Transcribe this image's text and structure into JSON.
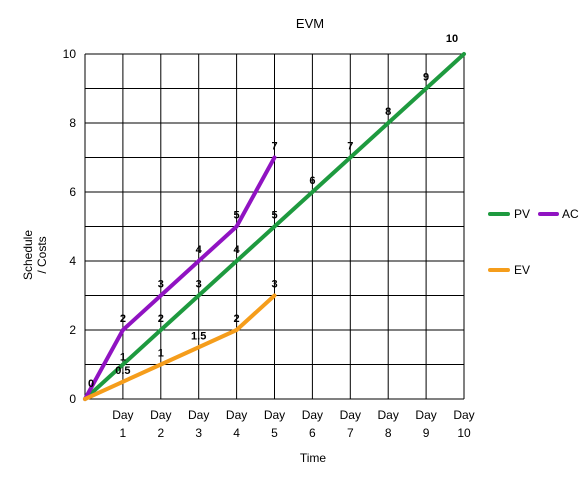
{
  "chart_data": {
    "type": "line",
    "title": "EVM",
    "xlabel": "Time",
    "ylabel": "Schedule / Costs",
    "ylabel_lines": [
      "Schedule",
      "/ Costs"
    ],
    "x": [
      0,
      1,
      2,
      3,
      4,
      5,
      6,
      7,
      8,
      9,
      10
    ],
    "x_tick_labels": [
      [
        "Day",
        "1"
      ],
      [
        "Day",
        "2"
      ],
      [
        "Day",
        "3"
      ],
      [
        "Day",
        "4"
      ],
      [
        "Day",
        "5"
      ],
      [
        "Day",
        "6"
      ],
      [
        "Day",
        "7"
      ],
      [
        "Day",
        "8"
      ],
      [
        "Day",
        "9"
      ],
      [
        "Day",
        "10"
      ]
    ],
    "y_ticks": [
      0,
      2,
      4,
      6,
      8,
      10
    ],
    "xlim": [
      0,
      10
    ],
    "ylim": [
      0,
      10
    ],
    "grid": true,
    "legend_position": "right",
    "series": [
      {
        "name": "PV",
        "color": "#1e9a3f",
        "x": [
          0,
          1,
          2,
          3,
          4,
          5,
          6,
          7,
          8,
          9,
          10
        ],
        "values": [
          0,
          1,
          2,
          3,
          4,
          5,
          6,
          7,
          8,
          9,
          10
        ],
        "labels": [
          "0",
          "1",
          "2",
          "3",
          "4",
          "5",
          "6",
          "7",
          "8",
          "9",
          "10"
        ]
      },
      {
        "name": "AC",
        "color": "#9013c2",
        "x": [
          0,
          1,
          2,
          3,
          4,
          5
        ],
        "values": [
          0,
          2,
          3,
          4,
          5,
          7
        ],
        "labels": [
          "0",
          "2",
          "3",
          "4",
          "5",
          "7"
        ]
      },
      {
        "name": "EV",
        "color": "#f59d1b",
        "x": [
          0,
          1,
          2,
          3,
          4,
          5
        ],
        "values": [
          0,
          0.5,
          1,
          1.5,
          2,
          3
        ],
        "labels": [
          "0",
          "0.5",
          "1",
          "1.5",
          "2",
          "3"
        ]
      }
    ]
  }
}
